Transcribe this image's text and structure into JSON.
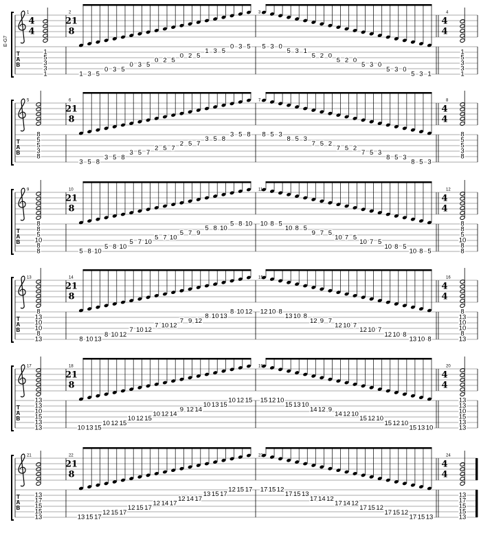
{
  "label": "E-G7",
  "tab_label": "TAB",
  "systems": [
    {
      "measures": [
        {
          "number": 1,
          "time": {
            "top": 4,
            "bottom": 4
          },
          "chord": [
            null,
            1,
            5,
            3,
            3,
            1
          ]
        },
        {
          "number": 2,
          "time": {
            "top": 21,
            "bottom": 8
          },
          "groups": [
            [
              1,
              3,
              5
            ],
            [
              0,
              3,
              5
            ],
            [
              0,
              3,
              5
            ],
            [
              0,
              2,
              5
            ],
            [
              0,
              2,
              5
            ],
            [
              1,
              3,
              5
            ],
            [
              0,
              3,
              5
            ]
          ]
        },
        {
          "number": 3,
          "groups": [
            [
              5,
              3,
              0
            ],
            [
              5,
              3,
              1
            ],
            [
              5,
              2,
              0
            ],
            [
              5,
              2,
              0
            ],
            [
              5,
              3,
              0
            ],
            [
              5,
              3,
              0
            ],
            [
              5,
              3,
              1
            ]
          ]
        },
        {
          "number": 4,
          "time": {
            "top": 4,
            "bottom": 4
          },
          "chord": [
            null,
            1,
            5,
            3,
            3,
            1
          ]
        }
      ]
    },
    {
      "measures": [
        {
          "number": 5,
          "chord": [
            8,
            5,
            5,
            3,
            8,
            null
          ]
        },
        {
          "number": 6,
          "time": {
            "top": 21,
            "bottom": 8
          },
          "groups": [
            [
              3,
              5,
              8
            ],
            [
              3,
              5,
              8
            ],
            [
              3,
              5,
              7
            ],
            [
              2,
              5,
              7
            ],
            [
              2,
              5,
              7
            ],
            [
              3,
              5,
              8
            ],
            [
              3,
              5,
              8
            ]
          ]
        },
        {
          "number": 7,
          "groups": [
            [
              8,
              5,
              3
            ],
            [
              8,
              5,
              3
            ],
            [
              7,
              5,
              2
            ],
            [
              7,
              5,
              2
            ],
            [
              7,
              5,
              3
            ],
            [
              8,
              5,
              3
            ],
            [
              8,
              5,
              3
            ]
          ]
        },
        {
          "number": 8,
          "time": {
            "top": 4,
            "bottom": 4
          },
          "chord": [
            8,
            5,
            5,
            3,
            8,
            null
          ]
        }
      ]
    },
    {
      "measures": [
        {
          "number": 9,
          "chord": [
            8,
            8,
            5,
            10,
            8,
            8
          ]
        },
        {
          "number": 10,
          "time": {
            "top": 21,
            "bottom": 8
          },
          "groups": [
            [
              5,
              8,
              10
            ],
            [
              5,
              8,
              10
            ],
            [
              5,
              7,
              10
            ],
            [
              5,
              7,
              10
            ],
            [
              5,
              7,
              9
            ],
            [
              5,
              8,
              10
            ],
            [
              5,
              8,
              10
            ]
          ]
        },
        {
          "number": 11,
          "groups": [
            [
              10,
              8,
              5
            ],
            [
              10,
              8,
              5
            ],
            [
              9,
              7,
              5
            ],
            [
              10,
              7,
              5
            ],
            [
              10,
              7,
              5
            ],
            [
              10,
              8,
              5
            ],
            [
              10,
              8,
              5
            ]
          ]
        },
        {
          "number": 12,
          "time": {
            "top": 4,
            "bottom": 4
          },
          "chord": [
            8,
            8,
            5,
            10,
            8,
            8
          ]
        }
      ]
    },
    {
      "measures": [
        {
          "number": 13,
          "chord": [
            8,
            13,
            10,
            10,
            8,
            13
          ]
        },
        {
          "number": 14,
          "time": {
            "top": 21,
            "bottom": 8
          },
          "groups": [
            [
              8,
              10,
              13
            ],
            [
              8,
              10,
              12
            ],
            [
              7,
              10,
              12
            ],
            [
              7,
              10,
              12
            ],
            [
              7,
              9,
              12
            ],
            [
              8,
              10,
              13
            ],
            [
              8,
              10,
              12
            ]
          ]
        },
        {
          "number": 15,
          "groups": [
            [
              12,
              10,
              8
            ],
            [
              13,
              10,
              8
            ],
            [
              12,
              9,
              7
            ],
            [
              12,
              10,
              7
            ],
            [
              12,
              10,
              7
            ],
            [
              12,
              10,
              8
            ],
            [
              13,
              10,
              8
            ]
          ]
        },
        {
          "number": 16,
          "time": {
            "top": 4,
            "bottom": 4
          },
          "chord": [
            8,
            13,
            10,
            10,
            8,
            13
          ]
        }
      ]
    },
    {
      "measures": [
        {
          "number": 17,
          "chord": [
            13,
            13,
            10,
            15,
            13,
            13
          ]
        },
        {
          "number": 18,
          "time": {
            "top": 21,
            "bottom": 8
          },
          "groups": [
            [
              10,
              13,
              15
            ],
            [
              10,
              12,
              15
            ],
            [
              10,
              12,
              15
            ],
            [
              10,
              12,
              14
            ],
            [
              9,
              12,
              14
            ],
            [
              10,
              13,
              15
            ],
            [
              10,
              12,
              15
            ]
          ]
        },
        {
          "number": 19,
          "groups": [
            [
              15,
              12,
              10
            ],
            [
              15,
              13,
              10
            ],
            [
              14,
              12,
              9
            ],
            [
              14,
              12,
              10
            ],
            [
              15,
              12,
              10
            ],
            [
              15,
              12,
              10
            ],
            [
              15,
              13,
              10
            ]
          ]
        },
        {
          "number": 20,
          "time": {
            "top": 4,
            "bottom": 4
          },
          "chord": [
            13,
            13,
            10,
            15,
            13,
            13
          ]
        }
      ]
    },
    {
      "measures": [
        {
          "number": 21,
          "chord": [
            null,
            13,
            17,
            15,
            15,
            13
          ]
        },
        {
          "number": 22,
          "time": {
            "top": 21,
            "bottom": 8
          },
          "groups": [
            [
              13,
              15,
              17
            ],
            [
              12,
              15,
              17
            ],
            [
              12,
              15,
              17
            ],
            [
              12,
              14,
              17
            ],
            [
              12,
              14,
              17
            ],
            [
              13,
              15,
              17
            ],
            [
              12,
              15,
              17
            ]
          ]
        },
        {
          "number": 23,
          "groups": [
            [
              17,
              15,
              12
            ],
            [
              17,
              15,
              13
            ],
            [
              17,
              14,
              12
            ],
            [
              17,
              14,
              12
            ],
            [
              17,
              15,
              12
            ],
            [
              17,
              15,
              12
            ],
            [
              17,
              15,
              13
            ]
          ]
        },
        {
          "number": 24,
          "time": {
            "top": 4,
            "bottom": 4
          },
          "chord": [
            null,
            13,
            17,
            15,
            15,
            13
          ]
        }
      ]
    }
  ]
}
